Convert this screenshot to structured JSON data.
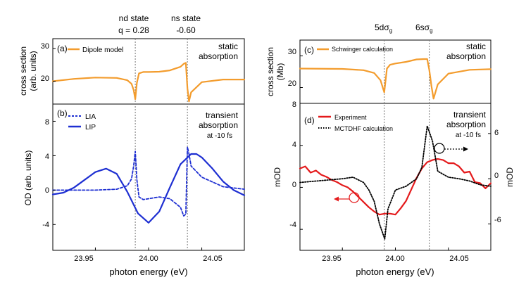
{
  "colors": {
    "orange": "#f39c2d",
    "blue": "#1e2fd2",
    "red": "#e41a1c",
    "black": "#000000",
    "gray": "#777777"
  },
  "labels": {
    "nd_state_title": "nd state",
    "nd_state_q": "q = 0.28",
    "ns_state_title": "ns state",
    "ns_state_q": "-0.60",
    "sigma5d": "5dσ",
    "sigma6s": "6sσ",
    "sub_g": "g",
    "left_xlabel": "photon energy (eV)",
    "right_xlabel": "photon energy (eV)"
  },
  "chart_data": [
    {
      "id": "a",
      "type": "line",
      "panel_label": "(a)",
      "ylabel_1": "cross section",
      "ylabel_2": "(arb. units)",
      "ylim": [
        13,
        33
      ],
      "yticks": [
        "20",
        "30"
      ],
      "xlim": [
        23.91,
        24.09
      ],
      "note_1": "static",
      "note_2": "absorption",
      "series": [
        {
          "name": "Dipole model",
          "color": "#f39c2d",
          "style": "solid",
          "x": [
            23.91,
            23.93,
            23.95,
            23.97,
            23.98,
            23.984,
            23.986,
            23.9875,
            23.989,
            23.991,
            23.995,
            24.0,
            24.01,
            24.02,
            24.03,
            24.033,
            24.035,
            24.0365,
            24.038,
            24.04,
            24.05,
            24.07,
            24.09
          ],
          "y": [
            20.0,
            20.7,
            21.1,
            21.0,
            20.3,
            19.2,
            17.3,
            14.5,
            19.5,
            22.4,
            22.8,
            22.8,
            22.9,
            23.3,
            24.4,
            25.3,
            25.6,
            17.8,
            13.8,
            16.6,
            19.7,
            20.5,
            20.5
          ]
        }
      ]
    },
    {
      "id": "b",
      "type": "line",
      "panel_label": "(b)",
      "ylabel": "OD (arb. units)",
      "ylim": [
        -7,
        10
      ],
      "yticks": [
        "-4",
        "0",
        "4",
        "8"
      ],
      "xlim": [
        23.91,
        24.09
      ],
      "xticks": [
        "23.95",
        "24.00",
        "24.05"
      ],
      "note_1": "transient",
      "note_2": "absorption",
      "note_3": "at -10 fs",
      "series": [
        {
          "name": "LIA",
          "color": "#1e2fd2",
          "style": "dashed",
          "x": [
            23.91,
            23.95,
            23.97,
            23.98,
            23.984,
            23.986,
            23.9875,
            23.989,
            23.991,
            23.995,
            24.0,
            24.01,
            24.02,
            24.03,
            24.033,
            24.035,
            24.0365,
            24.038,
            24.04,
            24.05,
            24.07,
            24.09
          ],
          "y": [
            0.0,
            0.0,
            0.1,
            0.5,
            1.3,
            2.8,
            4.5,
            1.2,
            -0.8,
            -1.1,
            -1.0,
            -0.8,
            -1.0,
            -2.0,
            -3.0,
            -2.8,
            5.0,
            4.2,
            2.8,
            1.5,
            0.4,
            0.1
          ]
        },
        {
          "name": "LIP",
          "color": "#1e2fd2",
          "style": "solid",
          "x": [
            23.91,
            23.92,
            23.93,
            23.94,
            23.95,
            23.96,
            23.97,
            23.98,
            23.99,
            24.0,
            24.01,
            24.02,
            24.03,
            24.04,
            24.045,
            24.05,
            24.06,
            24.07,
            24.08,
            24.09
          ],
          "y": [
            -0.5,
            -0.3,
            0.3,
            1.2,
            2.1,
            2.5,
            1.9,
            -0.2,
            -2.7,
            -3.8,
            -2.5,
            0.3,
            3.0,
            4.2,
            4.2,
            3.8,
            2.5,
            1.0,
            0.0,
            -0.6
          ]
        }
      ]
    },
    {
      "id": "c",
      "type": "line",
      "panel_label": "(c)",
      "ylabel_1": "cross section",
      "ylabel_2": "(Mb)",
      "ylim": [
        15,
        35
      ],
      "yticks": [
        "20",
        "30"
      ],
      "xlim": [
        23.91,
        24.09
      ],
      "note_1": "static",
      "note_2": "absorption",
      "series": [
        {
          "name": "Schwinger calculation",
          "color": "#f39c2d",
          "style": "solid",
          "x": [
            23.91,
            23.95,
            23.97,
            23.98,
            23.986,
            23.9895,
            23.992,
            23.995,
            24.0,
            24.01,
            24.02,
            24.027,
            24.03,
            24.032,
            24.034,
            24.036,
            24.04,
            24.05,
            24.07,
            24.09
          ],
          "y": [
            26.0,
            25.9,
            25.5,
            24.6,
            22.3,
            18.5,
            26.0,
            27.2,
            27.6,
            28.1,
            28.9,
            29.0,
            29.0,
            25.5,
            20.5,
            16.5,
            21.0,
            24.4,
            25.6,
            25.8
          ]
        }
      ]
    },
    {
      "id": "d",
      "type": "line",
      "panel_label": "(d)",
      "ylabel_left": "mOD",
      "ylabel_right": "mOD",
      "ylim_left": [
        -6,
        8
      ],
      "ylim_right": [
        -9.5,
        10
      ],
      "yticks_left": [
        "-4",
        "0",
        "4",
        "8"
      ],
      "yticks_right": [
        "-6",
        "0",
        "6"
      ],
      "xlim": [
        23.91,
        24.09
      ],
      "xticks": [
        "23.95",
        "24.00",
        "24.05"
      ],
      "note_1": "transient",
      "note_2": "absorption",
      "note_3": "at -10 fs",
      "series": [
        {
          "name": "Experiment",
          "color": "#e41a1c",
          "style": "solid",
          "axis": "left",
          "x": [
            23.91,
            23.915,
            23.92,
            23.925,
            23.93,
            23.935,
            23.94,
            23.945,
            23.95,
            23.955,
            23.96,
            23.965,
            23.97,
            23.975,
            23.98,
            23.985,
            23.99,
            23.995,
            24.0,
            24.005,
            24.01,
            24.015,
            24.02,
            24.025,
            24.03,
            24.035,
            24.04,
            24.045,
            24.05,
            24.055,
            24.06,
            24.065,
            24.07,
            24.075,
            24.08,
            24.085,
            24.09
          ],
          "y": [
            1.8,
            2.0,
            1.4,
            1.6,
            1.2,
            1.0,
            0.7,
            0.5,
            0.2,
            0.0,
            -0.4,
            -0.9,
            -1.4,
            -1.9,
            -2.3,
            -2.6,
            -2.5,
            -2.5,
            -2.6,
            -2.0,
            -1.3,
            -0.2,
            0.9,
            1.8,
            2.4,
            2.6,
            2.7,
            2.6,
            2.3,
            2.3,
            2.0,
            1.4,
            1.5,
            0.5,
            0.4,
            -0.1,
            0.4
          ]
        },
        {
          "name": "MCTDHF calculation",
          "color": "#000000",
          "style": "dotted",
          "axis": "right",
          "x": [
            23.91,
            23.95,
            23.96,
            23.97,
            23.975,
            23.98,
            23.985,
            23.99,
            23.993,
            24.0,
            24.01,
            24.02,
            24.025,
            24.03,
            24.035,
            24.04,
            24.05,
            24.06,
            24.07,
            24.08,
            24.09
          ],
          "y": [
            -0.5,
            0.0,
            0.2,
            -0.5,
            -1.5,
            -3.0,
            -6.0,
            -8.0,
            -4.0,
            -1.5,
            -1.0,
            0.0,
            1.5,
            7.0,
            5.0,
            1.0,
            0.2,
            0.0,
            -0.3,
            -0.8,
            -1.0
          ]
        }
      ]
    }
  ]
}
